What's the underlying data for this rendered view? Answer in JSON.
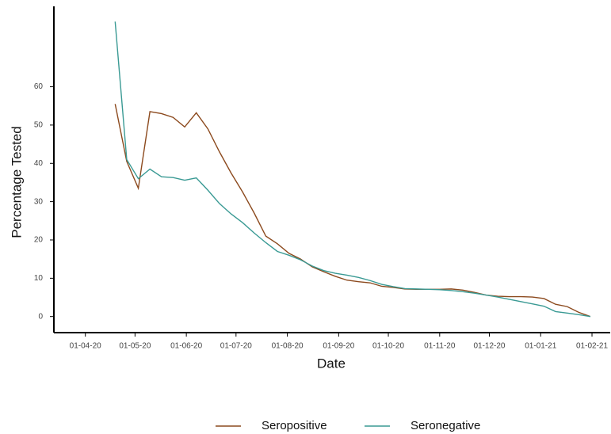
{
  "chart_data": {
    "type": "line",
    "x_label": "Date",
    "y_label": "Percentage Tested",
    "x": [
      "2020-04-19",
      "2020-04-26",
      "2020-05-03",
      "2020-05-10",
      "2020-05-17",
      "2020-05-24",
      "2020-05-31",
      "2020-06-07",
      "2020-06-14",
      "2020-06-21",
      "2020-06-28",
      "2020-07-05",
      "2020-07-12",
      "2020-07-19",
      "2020-07-26",
      "2020-08-02",
      "2020-08-09",
      "2020-08-16",
      "2020-08-23",
      "2020-08-30",
      "2020-09-06",
      "2020-09-13",
      "2020-09-20",
      "2020-09-27",
      "2020-10-04",
      "2020-10-11",
      "2020-10-18",
      "2020-10-25",
      "2020-11-01",
      "2020-11-08",
      "2020-11-15",
      "2020-11-22",
      "2020-11-29",
      "2020-12-06",
      "2020-12-13",
      "2020-12-20",
      "2020-12-27",
      "2021-01-03",
      "2021-01-10",
      "2021-01-17",
      "2021-01-24",
      "2021-01-31"
    ],
    "series": [
      {
        "name": "Seropositive",
        "color": "#8c4a1e",
        "values": [
          55.5,
          40.5,
          33.5,
          53.5,
          53,
          52,
          49.5,
          53.2,
          49,
          43,
          37.5,
          32.5,
          27,
          21,
          19,
          16.5,
          15,
          13,
          11.7,
          10.5,
          9.5,
          9.1,
          8.8,
          7.9,
          7.6,
          7.2,
          7.1,
          7.1,
          7.1,
          7.2,
          6.9,
          6.3,
          5.6,
          5.3,
          5.2,
          5.2,
          5.1,
          4.7,
          3.2,
          2.6,
          1.1,
          0
        ]
      },
      {
        "name": "Seronegative",
        "color": "#3a9a94",
        "values": [
          77,
          41,
          36,
          38.5,
          36.5,
          36.3,
          35.6,
          36.2,
          33,
          29.5,
          26.8,
          24.5,
          21.8,
          19.3,
          17,
          16,
          14.8,
          13.2,
          12,
          11.3,
          10.8,
          10.2,
          9.4,
          8.4,
          7.8,
          7.3,
          7.2,
          7.1,
          7,
          6.8,
          6.5,
          6.1,
          5.6,
          5.1,
          4.5,
          3.9,
          3.3,
          2.7,
          1.3,
          0.9,
          0.5,
          0
        ]
      }
    ],
    "xlim": [
      "2020-03-13",
      "2021-02-12"
    ],
    "xticks": [
      {
        "value": "2020-04-01",
        "label": "01-04-20"
      },
      {
        "value": "2020-05-01",
        "label": "01-05-20"
      },
      {
        "value": "2020-06-01",
        "label": "01-06-20"
      },
      {
        "value": "2020-07-01",
        "label": "01-07-20"
      },
      {
        "value": "2020-08-01",
        "label": "01-08-20"
      },
      {
        "value": "2020-09-01",
        "label": "01-09-20"
      },
      {
        "value": "2020-10-01",
        "label": "01-10-20"
      },
      {
        "value": "2020-11-01",
        "label": "01-11-20"
      },
      {
        "value": "2020-12-01",
        "label": "01-12-20"
      },
      {
        "value": "2021-01-01",
        "label": "01-01-21"
      },
      {
        "value": "2021-02-01",
        "label": "01-02-21"
      }
    ],
    "ylim": [
      -4.2,
      81
    ],
    "yticks": [
      0,
      10,
      20,
      30,
      40,
      50,
      60
    ],
    "grid": false,
    "legend": "bottom"
  }
}
